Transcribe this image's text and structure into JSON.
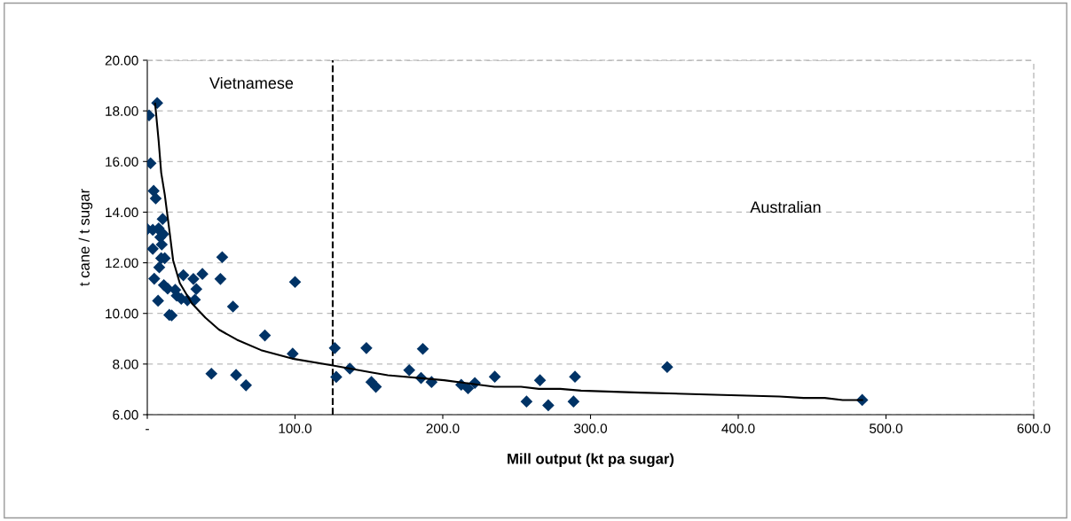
{
  "chart_data": {
    "type": "scatter",
    "xlabel": "Mill output (kt pa sugar)",
    "ylabel": "t cane / t sugar",
    "annotations": [
      "Vietnamese",
      "Australian"
    ],
    "series": [
      {
        "color": "#003366",
        "marker": "diamond",
        "x": [
          6.7,
          1.2,
          2.2,
          4.3,
          5.7,
          10.4,
          0,
          3.7,
          7.7,
          9.8,
          8.8,
          10.8,
          9.8,
          3.7,
          9.4,
          11.8,
          8.1,
          4.7,
          50.7,
          24.4,
          31.2,
          37.3,
          49.5,
          100,
          11.2,
          13.8,
          18.9,
          33.2,
          19.9,
          23.0,
          27.1,
          32.2,
          7.3,
          14.9,
          16.5,
          58.0,
          79.6,
          98.4,
          43.4,
          60.1,
          66.8,
          126.9,
          127.9,
          137.1,
          148.3,
          151.7,
          154.7,
          177.3,
          186.5,
          185.3,
          192.4,
          212.5,
          217.1,
          221.7,
          235.2,
          256.7,
          265.8,
          271.4,
          288.5,
          289.5,
          351.9,
          483.9
        ],
        "values": [
          18.31,
          17.82,
          15.93,
          14.84,
          14.54,
          13.73,
          13.33,
          13.3,
          13.36,
          13.19,
          13.01,
          13.13,
          12.72,
          12.55,
          12.18,
          12.18,
          11.82,
          11.37,
          12.22,
          11.51,
          11.36,
          11.56,
          11.36,
          11.24,
          11.12,
          10.98,
          10.93,
          10.96,
          10.7,
          10.58,
          10.52,
          10.54,
          10.5,
          9.94,
          9.92,
          10.27,
          9.13,
          8.41,
          7.62,
          7.57,
          7.16,
          8.63,
          7.49,
          7.82,
          8.63,
          7.29,
          7.1,
          7.76,
          8.6,
          7.45,
          7.29,
          7.18,
          7.04,
          7.25,
          7.5,
          6.52,
          7.36,
          6.37,
          6.52,
          7.5,
          7.88,
          6.58
        ]
      },
      {
        "type": "line",
        "color": "#000000",
        "marker": "none",
        "line_style": "solid",
        "x": [
          5.3,
          7.7,
          9.4,
          11.8,
          14.9,
          17.5,
          22,
          30.1,
          39.3,
          48.5,
          60.7,
          77,
          99.4,
          124.8,
          152.3,
          162.8,
          201,
          213,
          235,
          253,
          265,
          279.5,
          293.6,
          333.8,
          384,
          427.9,
          444.2,
          458.5,
          470.7,
          483.9
        ],
        "values": [
          18.29,
          16.8,
          15.56,
          14.7,
          13.3,
          12.09,
          11.2,
          10.4,
          9.83,
          9.36,
          8.96,
          8.55,
          8.2,
          7.95,
          7.66,
          7.56,
          7.36,
          7.27,
          7.1,
          7.1,
          7.02,
          7.02,
          6.95,
          6.87,
          6.79,
          6.72,
          6.66,
          6.66,
          6.58,
          6.58
        ]
      }
    ],
    "ref_lines": [
      {
        "axis": "x",
        "value": 125.5,
        "color": "#000000",
        "line_style": "dashed"
      }
    ],
    "xlim": [
      0,
      600
    ],
    "xticks": [
      {
        "value": 0,
        "label": "-"
      },
      {
        "value": 100,
        "label": "100.0"
      },
      {
        "value": 200,
        "label": "200.0"
      },
      {
        "value": 300,
        "label": "300.0"
      },
      {
        "value": 400,
        "label": "400.0"
      },
      {
        "value": 500,
        "label": "500.0"
      },
      {
        "value": 600,
        "label": "600.0"
      }
    ],
    "ylim": [
      6,
      20
    ],
    "yticks": [
      {
        "value": 6,
        "label": "6.00"
      },
      {
        "value": 8,
        "label": "8.00"
      },
      {
        "value": 10,
        "label": "10.00"
      },
      {
        "value": 12,
        "label": "12.00"
      },
      {
        "value": 14,
        "label": "14.00"
      },
      {
        "value": 16,
        "label": "16.00"
      },
      {
        "value": 18,
        "label": "18.00"
      },
      {
        "value": 20,
        "label": "20.00"
      }
    ],
    "grid": "y",
    "legend": false
  }
}
